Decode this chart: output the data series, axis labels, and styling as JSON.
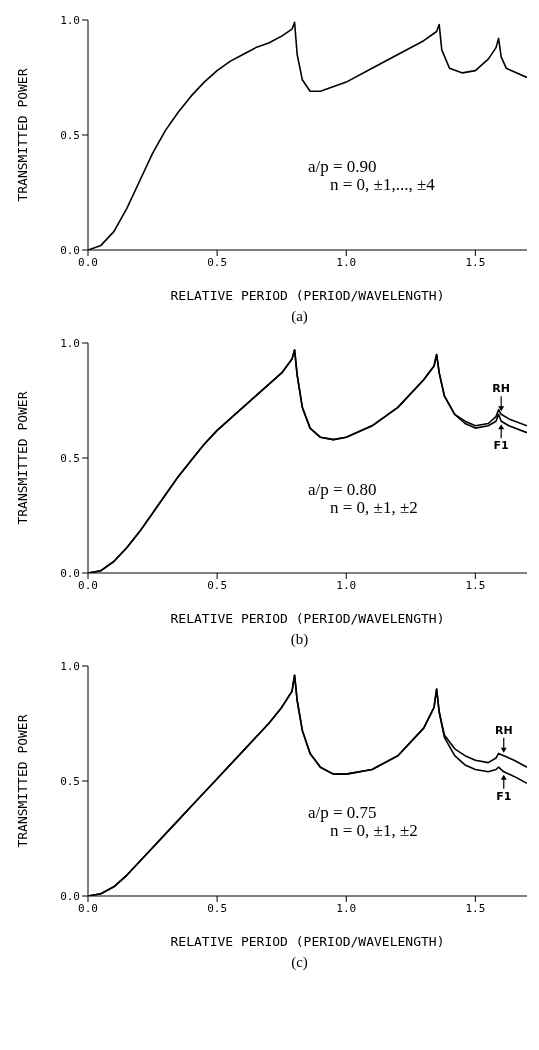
{
  "chart_data": [
    {
      "type": "line",
      "title": "(a)",
      "xlabel": "RELATIVE PERIOD (PERIOD/WAVELENGTH)",
      "ylabel": "TRANSMITTED POWER",
      "xlim": [
        0,
        1.7
      ],
      "ylim": [
        0,
        1
      ],
      "xticks": [
        {
          "value": 0,
          "label": "0.0"
        },
        {
          "value": 0.5,
          "label": "0.5"
        },
        {
          "value": 1,
          "label": "1.0"
        },
        {
          "value": 1.5,
          "label": "1.5"
        }
      ],
      "yticks": [
        {
          "value": 0,
          "label": "0.0"
        },
        {
          "value": 0.5,
          "label": "0.5"
        },
        {
          "value": 1,
          "label": "1.0"
        }
      ],
      "grid": false,
      "legend": false,
      "annotations": [
        "a/p = 0.90",
        "n = 0, ±1,..., ±4"
      ],
      "x": [
        0,
        0.05,
        0.1,
        0.15,
        0.2,
        0.25,
        0.3,
        0.35,
        0.4,
        0.45,
        0.5,
        0.55,
        0.6,
        0.65,
        0.7,
        0.75,
        0.79,
        0.8,
        0.81,
        0.83,
        0.86,
        0.9,
        1.0,
        1.1,
        1.2,
        1.3,
        1.35,
        1.36,
        1.37,
        1.4,
        1.45,
        1.5,
        1.55,
        1.58,
        1.59,
        1.6,
        1.62,
        1.7
      ],
      "series": [
        {
          "color": "#000000",
          "values": [
            0,
            0.02,
            0.08,
            0.18,
            0.3,
            0.42,
            0.52,
            0.6,
            0.67,
            0.73,
            0.78,
            0.82,
            0.85,
            0.88,
            0.9,
            0.93,
            0.96,
            0.99,
            0.85,
            0.74,
            0.69,
            0.69,
            0.73,
            0.79,
            0.85,
            0.91,
            0.95,
            0.98,
            0.87,
            0.79,
            0.77,
            0.78,
            0.83,
            0.88,
            0.92,
            0.84,
            0.79,
            0.75
          ]
        }
      ]
    },
    {
      "type": "line",
      "title": "(b)",
      "xlabel": "RELATIVE PERIOD (PERIOD/WAVELENGTH)",
      "ylabel": "TRANSMITTED POWER",
      "xlim": [
        0,
        1.7
      ],
      "ylim": [
        0,
        1
      ],
      "xticks": [
        {
          "value": 0,
          "label": "0.0"
        },
        {
          "value": 0.5,
          "label": "0.5"
        },
        {
          "value": 1,
          "label": "1.0"
        },
        {
          "value": 1.5,
          "label": "1.5"
        }
      ],
      "yticks": [
        {
          "value": 0,
          "label": "0.0"
        },
        {
          "value": 0.5,
          "label": "0.5"
        },
        {
          "value": 1,
          "label": "1.0"
        }
      ],
      "grid": false,
      "legend": "right",
      "annotations": [
        "a/p = 0.80",
        "n = 0, ±1, ±2"
      ],
      "x": [
        0,
        0.05,
        0.1,
        0.15,
        0.2,
        0.25,
        0.3,
        0.35,
        0.4,
        0.45,
        0.5,
        0.55,
        0.6,
        0.65,
        0.7,
        0.75,
        0.79,
        0.8,
        0.81,
        0.83,
        0.86,
        0.9,
        0.95,
        1.0,
        1.1,
        1.2,
        1.3,
        1.34,
        1.35,
        1.36,
        1.38,
        1.42,
        1.46,
        1.5,
        1.55,
        1.58,
        1.59,
        1.6,
        1.63,
        1.7
      ],
      "series": [
        {
          "name": "RH",
          "color": "#000000",
          "values": [
            0,
            0.01,
            0.05,
            0.11,
            0.18,
            0.26,
            0.34,
            0.42,
            0.49,
            0.56,
            0.62,
            0.67,
            0.72,
            0.77,
            0.82,
            0.87,
            0.93,
            0.97,
            0.86,
            0.72,
            0.63,
            0.59,
            0.58,
            0.59,
            0.64,
            0.72,
            0.84,
            0.9,
            0.95,
            0.87,
            0.77,
            0.69,
            0.66,
            0.64,
            0.65,
            0.68,
            0.71,
            0.69,
            0.67,
            0.64
          ]
        },
        {
          "name": "F1",
          "color": "#000000",
          "values": [
            0,
            0.01,
            0.05,
            0.11,
            0.18,
            0.26,
            0.34,
            0.42,
            0.49,
            0.56,
            0.62,
            0.67,
            0.72,
            0.77,
            0.82,
            0.87,
            0.93,
            0.97,
            0.86,
            0.72,
            0.63,
            0.59,
            0.58,
            0.59,
            0.64,
            0.72,
            0.84,
            0.9,
            0.95,
            0.87,
            0.77,
            0.69,
            0.65,
            0.63,
            0.64,
            0.66,
            0.69,
            0.66,
            0.64,
            0.61
          ]
        }
      ]
    },
    {
      "type": "line",
      "title": "(c)",
      "xlabel": "RELATIVE PERIOD (PERIOD/WAVELENGTH)",
      "ylabel": "TRANSMITTED POWER",
      "xlim": [
        0,
        1.7
      ],
      "ylim": [
        0,
        1
      ],
      "xticks": [
        {
          "value": 0,
          "label": "0.0"
        },
        {
          "value": 0.5,
          "label": "0.5"
        },
        {
          "value": 1,
          "label": "1.0"
        },
        {
          "value": 1.5,
          "label": "1.5"
        }
      ],
      "yticks": [
        {
          "value": 0,
          "label": "0.0"
        },
        {
          "value": 0.5,
          "label": "0.5"
        },
        {
          "value": 1,
          "label": "1.0"
        }
      ],
      "grid": false,
      "legend": "right",
      "annotations": [
        "a/p = 0.75",
        "n = 0, ±1, ±2"
      ],
      "x": [
        0,
        0.05,
        0.1,
        0.15,
        0.2,
        0.25,
        0.3,
        0.35,
        0.4,
        0.45,
        0.5,
        0.55,
        0.6,
        0.65,
        0.7,
        0.75,
        0.79,
        0.8,
        0.81,
        0.83,
        0.86,
        0.9,
        0.95,
        1.0,
        1.1,
        1.2,
        1.3,
        1.34,
        1.35,
        1.36,
        1.38,
        1.42,
        1.46,
        1.5,
        1.55,
        1.58,
        1.59,
        1.61,
        1.65,
        1.7
      ],
      "series": [
        {
          "name": "RH",
          "color": "#000000",
          "values": [
            0,
            0.01,
            0.04,
            0.09,
            0.15,
            0.21,
            0.27,
            0.33,
            0.39,
            0.45,
            0.51,
            0.57,
            0.63,
            0.69,
            0.75,
            0.82,
            0.89,
            0.96,
            0.85,
            0.72,
            0.62,
            0.56,
            0.53,
            0.53,
            0.55,
            0.61,
            0.73,
            0.82,
            0.9,
            0.8,
            0.7,
            0.64,
            0.61,
            0.59,
            0.58,
            0.6,
            0.62,
            0.61,
            0.59,
            0.56
          ]
        },
        {
          "name": "F1",
          "color": "#000000",
          "values": [
            0,
            0.01,
            0.04,
            0.09,
            0.15,
            0.21,
            0.27,
            0.33,
            0.39,
            0.45,
            0.51,
            0.57,
            0.63,
            0.69,
            0.75,
            0.82,
            0.89,
            0.96,
            0.85,
            0.72,
            0.62,
            0.56,
            0.53,
            0.53,
            0.55,
            0.61,
            0.73,
            0.82,
            0.9,
            0.8,
            0.69,
            0.61,
            0.57,
            0.55,
            0.54,
            0.55,
            0.56,
            0.54,
            0.52,
            0.49
          ]
        }
      ]
    }
  ]
}
